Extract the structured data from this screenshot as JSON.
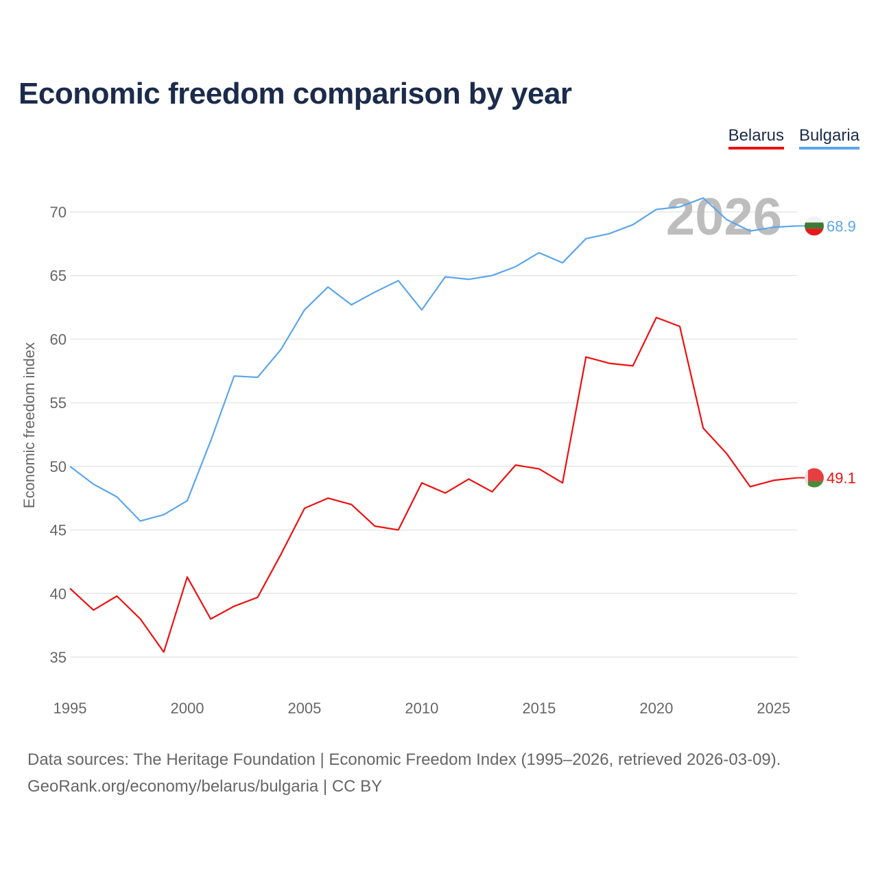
{
  "chart_data": {
    "type": "line",
    "title": "Economic freedom comparison by year",
    "ylabel": "Economic freedom index",
    "xlabel": "",
    "ylim": [
      33,
      72.5
    ],
    "xlim": [
      1995,
      2026
    ],
    "yticks": [
      35,
      40,
      45,
      50,
      55,
      60,
      65,
      70
    ],
    "xticks": [
      1995,
      2000,
      2005,
      2010,
      2015,
      2020,
      2025
    ],
    "grid": true,
    "legend_position": "top-right",
    "year_watermark": "2026",
    "x": [
      1995,
      1996,
      1997,
      1998,
      1999,
      2000,
      2001,
      2002,
      2003,
      2004,
      2005,
      2006,
      2007,
      2008,
      2009,
      2010,
      2011,
      2012,
      2013,
      2014,
      2015,
      2016,
      2017,
      2018,
      2019,
      2020,
      2021,
      2022,
      2023,
      2024,
      2025,
      2026
    ],
    "series": [
      {
        "name": "Belarus",
        "color": "#ee0f0f",
        "end_label": "49.1",
        "values": [
          40.4,
          38.7,
          39.8,
          38.0,
          35.4,
          41.3,
          38.0,
          39.0,
          39.7,
          43.1,
          46.7,
          47.5,
          47.0,
          45.3,
          45.0,
          48.7,
          47.9,
          49.0,
          48.0,
          50.1,
          49.8,
          48.7,
          58.6,
          58.1,
          57.9,
          61.7,
          61.0,
          53.0,
          51.0,
          48.4,
          48.9,
          49.1
        ]
      },
      {
        "name": "Bulgaria",
        "color": "#5aa5ee",
        "end_label": "68.9",
        "values": [
          50.0,
          48.6,
          47.6,
          45.7,
          46.2,
          47.3,
          52.0,
          57.1,
          57.0,
          59.2,
          62.3,
          64.1,
          62.7,
          63.7,
          64.6,
          62.3,
          64.9,
          64.7,
          65.0,
          65.7,
          66.8,
          66.0,
          67.9,
          68.3,
          69.0,
          70.2,
          70.4,
          71.1,
          69.4,
          68.5,
          68.8,
          68.9
        ]
      }
    ]
  },
  "footer": {
    "line1": "Data sources: The Heritage Foundation | Economic Freedom Index (1995–2026, retrieved 2026-03-09).",
    "line2": "GeoRank.org/economy/belarus/bulgaria | CC BY"
  }
}
